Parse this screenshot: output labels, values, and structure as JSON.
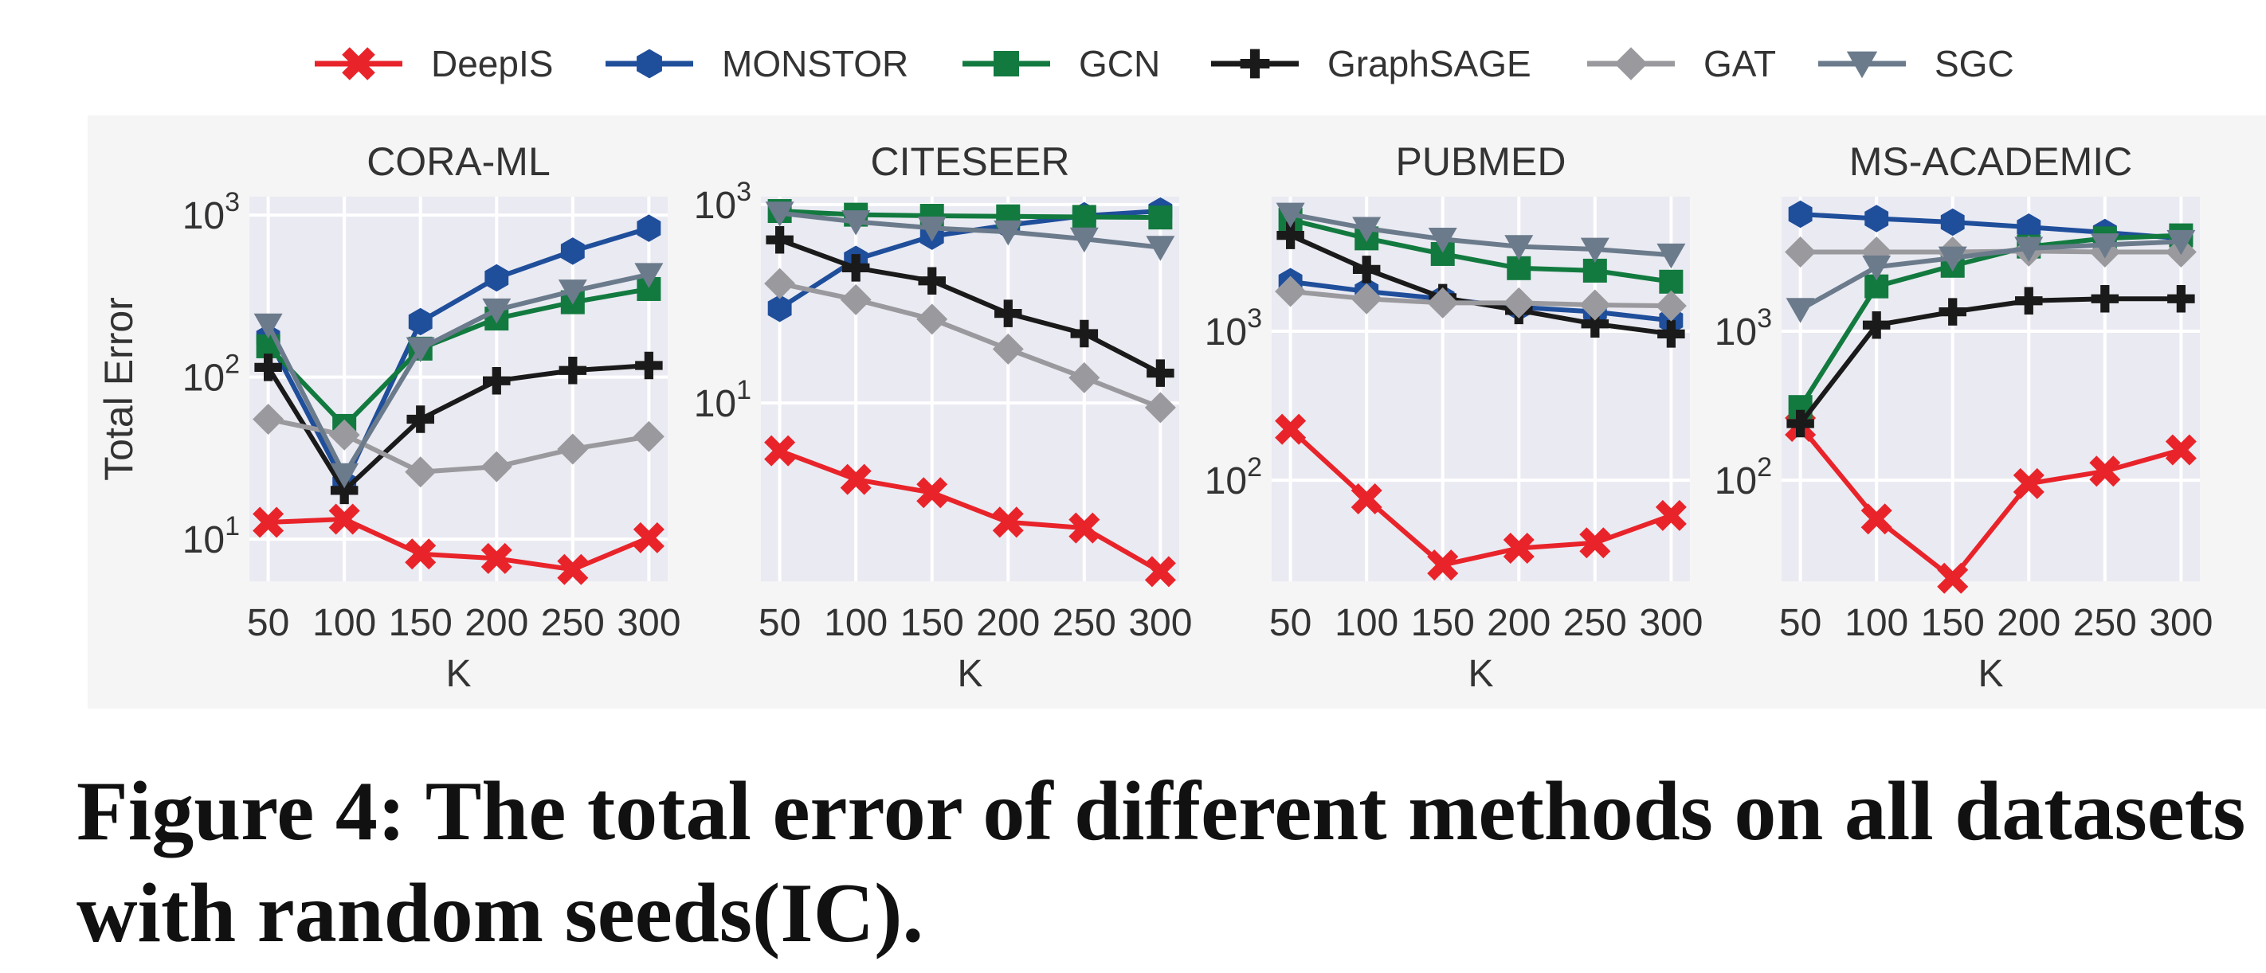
{
  "legend": [
    {
      "name": "DeepIS",
      "color": "#e8242a",
      "marker": "x"
    },
    {
      "name": "MONSTOR",
      "color": "#1f4e9b",
      "marker": "hexagon"
    },
    {
      "name": "GCN",
      "color": "#127a3f",
      "marker": "square"
    },
    {
      "name": "GraphSAGE",
      "color": "#1a1a1a",
      "marker": "plus"
    },
    {
      "name": "GAT",
      "color": "#9a9a9e",
      "marker": "diamond"
    },
    {
      "name": "SGC",
      "color": "#6b7b8c",
      "marker": "triangle-down"
    }
  ],
  "caption": "Figure 4: The total error of different methods on all datasets with random seeds(IC).",
  "chart_data": [
    {
      "type": "line",
      "title": "CORA-ML",
      "xlabel": "K",
      "ylabel": "Total Error",
      "yscale": "log",
      "grid": true,
      "ylim": [
        5.5,
        1300
      ],
      "x": [
        50,
        100,
        150,
        200,
        250,
        300
      ],
      "yticks": [
        {
          "base": "10",
          "exp": "1",
          "value": 10
        },
        {
          "base": "10",
          "exp": "2",
          "value": 100
        },
        {
          "base": "10",
          "exp": "3",
          "value": 1000
        }
      ],
      "series": [
        {
          "name": "DeepIS",
          "values": [
            12.7,
            13.3,
            8.1,
            7.6,
            6.5,
            10.2
          ]
        },
        {
          "name": "MONSTOR",
          "values": [
            175,
            22,
            220,
            410,
            600,
            830
          ]
        },
        {
          "name": "GCN",
          "values": [
            155,
            50,
            150,
            230,
            290,
            350
          ]
        },
        {
          "name": "GraphSAGE",
          "values": [
            115,
            20,
            55,
            95,
            110,
            118
          ]
        },
        {
          "name": "GAT",
          "values": [
            55,
            44,
            26,
            28,
            36,
            43
          ]
        },
        {
          "name": "SGC",
          "values": [
            210,
            25,
            150,
            260,
            340,
            430
          ]
        }
      ]
    },
    {
      "type": "line",
      "title": "CITESEER",
      "xlabel": "K",
      "ylabel": "",
      "yscale": "log",
      "grid": true,
      "ylim": [
        0.16,
        1200
      ],
      "x": [
        50,
        100,
        150,
        200,
        250,
        300
      ],
      "yticks": [
        {
          "base": "10",
          "exp": "1",
          "value": 10
        },
        {
          "base": "10",
          "exp": "3",
          "value": 1000
        }
      ],
      "series": [
        {
          "name": "DeepIS",
          "values": [
            3.3,
            1.7,
            1.25,
            0.63,
            0.55,
            0.2
          ]
        },
        {
          "name": "MONSTOR",
          "values": [
            90,
            280,
            480,
            620,
            770,
            860
          ]
        },
        {
          "name": "GCN",
          "values": [
            860,
            790,
            770,
            760,
            750,
            740
          ]
        },
        {
          "name": "GraphSAGE",
          "values": [
            440,
            230,
            170,
            80,
            50,
            20
          ]
        },
        {
          "name": "GAT",
          "values": [
            160,
            110,
            70,
            35,
            18,
            9
          ]
        },
        {
          "name": "SGC",
          "values": [
            820,
            670,
            580,
            530,
            450,
            370
          ]
        }
      ]
    },
    {
      "type": "line",
      "title": "PUBMED",
      "xlabel": "K",
      "ylabel": "",
      "yscale": "log",
      "grid": true,
      "ylim": [
        21,
        8000
      ],
      "x": [
        50,
        100,
        150,
        200,
        250,
        300
      ],
      "yticks": [
        {
          "base": "10",
          "exp": "2",
          "value": 100
        },
        {
          "base": "10",
          "exp": "3",
          "value": 1000
        }
      ],
      "series": [
        {
          "name": "DeepIS",
          "values": [
            220,
            75,
            27,
            35,
            38,
            58
          ]
        },
        {
          "name": "MONSTOR",
          "values": [
            2150,
            1850,
            1650,
            1450,
            1350,
            1180
          ]
        },
        {
          "name": "GCN",
          "values": [
            5600,
            4200,
            3300,
            2650,
            2550,
            2150
          ]
        },
        {
          "name": "GraphSAGE",
          "values": [
            4400,
            2600,
            1680,
            1380,
            1120,
            960
          ]
        },
        {
          "name": "GAT",
          "values": [
            1850,
            1650,
            1550,
            1550,
            1500,
            1480
          ]
        },
        {
          "name": "SGC",
          "values": [
            6100,
            4900,
            4150,
            3700,
            3550,
            3250
          ]
        }
      ]
    },
    {
      "type": "line",
      "title": "MS-ACADEMIC",
      "xlabel": "K",
      "ylabel": "",
      "yscale": "log",
      "grid": true,
      "ylim": [
        21,
        8000
      ],
      "x": [
        50,
        100,
        150,
        200,
        250,
        300
      ],
      "yticks": [
        {
          "base": "10",
          "exp": "2",
          "value": 100
        },
        {
          "base": "10",
          "exp": "3",
          "value": 1000
        }
      ],
      "series": [
        {
          "name": "DeepIS",
          "values": [
            230,
            55,
            22,
            95,
            115,
            160
          ]
        },
        {
          "name": "MONSTOR",
          "values": [
            6100,
            5700,
            5400,
            5000,
            4600,
            4200
          ]
        },
        {
          "name": "GCN",
          "values": [
            310,
            2000,
            2750,
            3700,
            4200,
            4400
          ]
        },
        {
          "name": "GraphSAGE",
          "values": [
            240,
            1100,
            1350,
            1600,
            1650,
            1650
          ]
        },
        {
          "name": "GAT",
          "values": [
            3400,
            3400,
            3400,
            3450,
            3400,
            3400
          ]
        },
        {
          "name": "SGC",
          "values": [
            1400,
            2700,
            3100,
            3600,
            3800,
            4000
          ]
        }
      ]
    }
  ]
}
